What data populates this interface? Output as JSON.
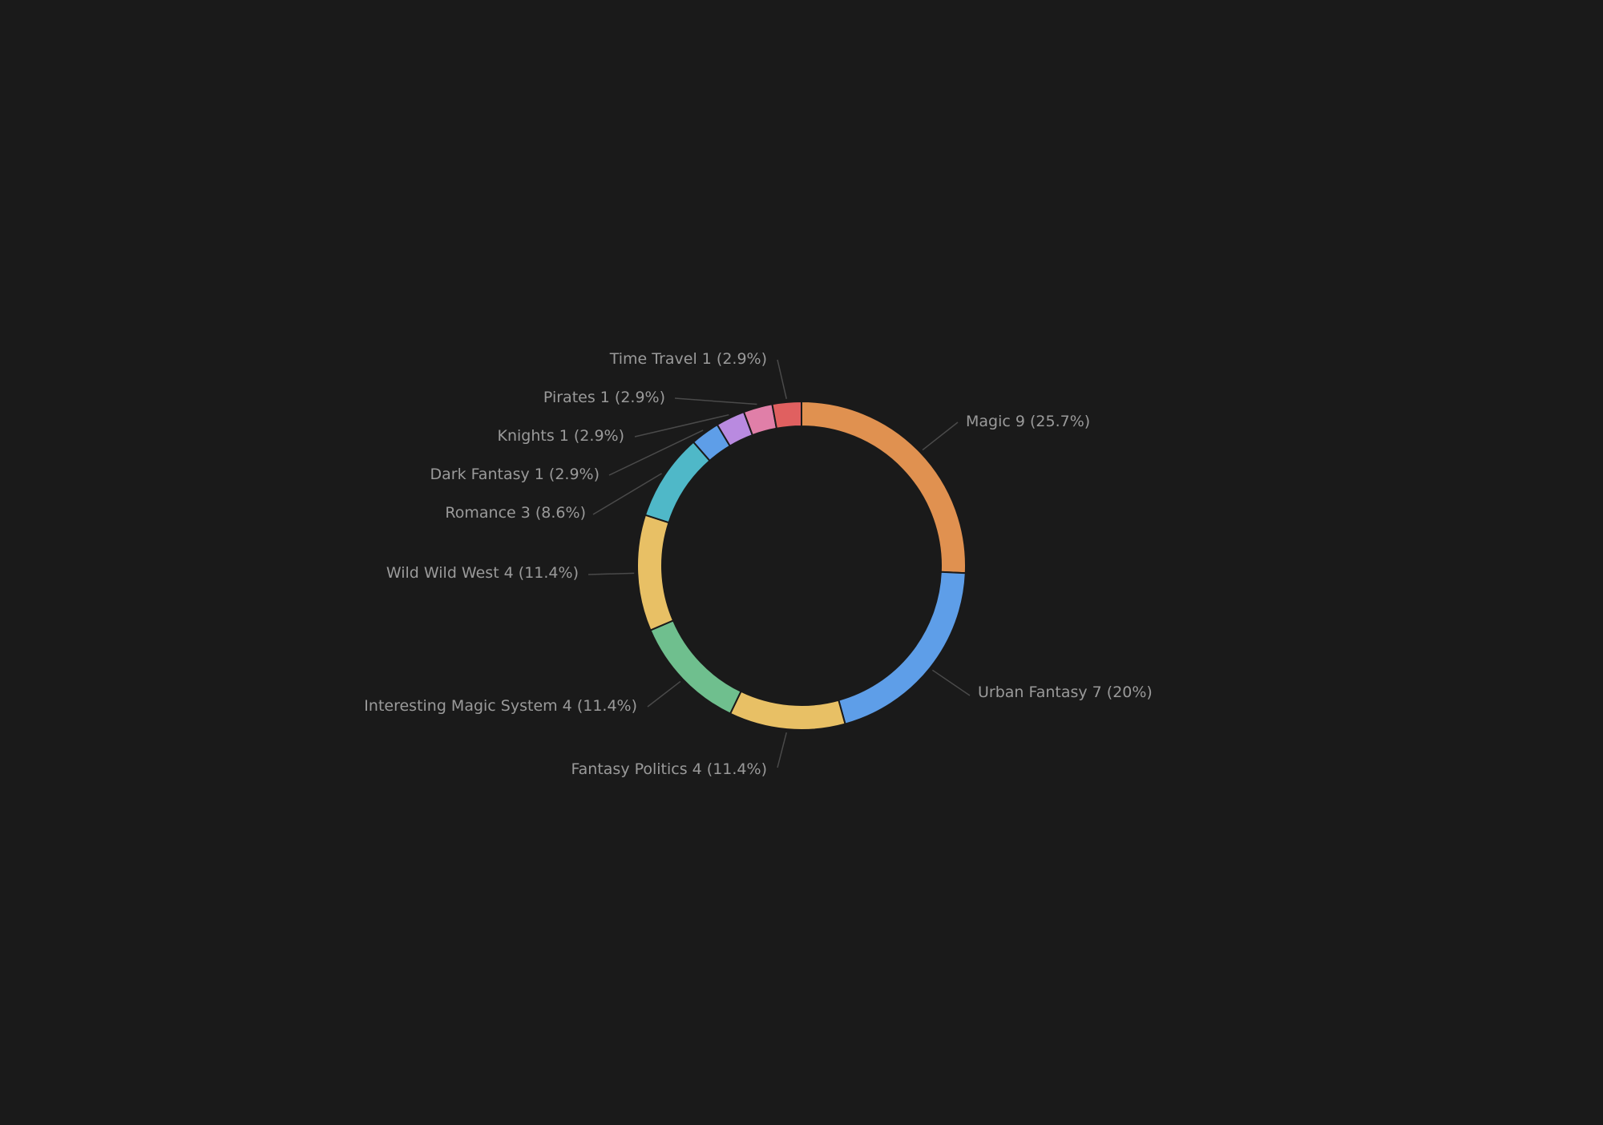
{
  "chart_data": {
    "type": "pie",
    "donut": true,
    "start_angle_deg": 0,
    "direction": "clockwise",
    "slices": [
      {
        "label": "Magic",
        "value": 9,
        "percent_text": "(25.7%)",
        "color": "#e09150"
      },
      {
        "label": "Urban Fantasy",
        "value": 7,
        "percent_text": "(20%)",
        "color": "#5e9ee8"
      },
      {
        "label": "Fantasy Politics",
        "value": 4,
        "percent_text": "(11.4%)",
        "color": "#e8c065"
      },
      {
        "label": "Interesting Magic System",
        "value": 4,
        "percent_text": "(11.4%)",
        "color": "#6fbf8e"
      },
      {
        "label": "Wild Wild West",
        "value": 4,
        "percent_text": "(11.4%)",
        "color": "#e8c065"
      },
      {
        "label": "Romance",
        "value": 3,
        "percent_text": "(8.6%)",
        "color": "#4fb8c8"
      },
      {
        "label": "Dark Fantasy",
        "value": 1,
        "percent_text": "(2.9%)",
        "color": "#5e9ee8"
      },
      {
        "label": "Knights",
        "value": 1,
        "percent_text": "(2.9%)",
        "color": "#b98ae0"
      },
      {
        "label": "Pirates",
        "value": 1,
        "percent_text": "(2.9%)",
        "color": "#e07fa8"
      },
      {
        "label": "Time Travel",
        "value": 1,
        "percent_text": "(2.9%)",
        "color": "#e06060"
      }
    ],
    "label_color": "#9a9a9a",
    "leader_color": "#4a4a4a",
    "background": "#1a1a1a"
  }
}
